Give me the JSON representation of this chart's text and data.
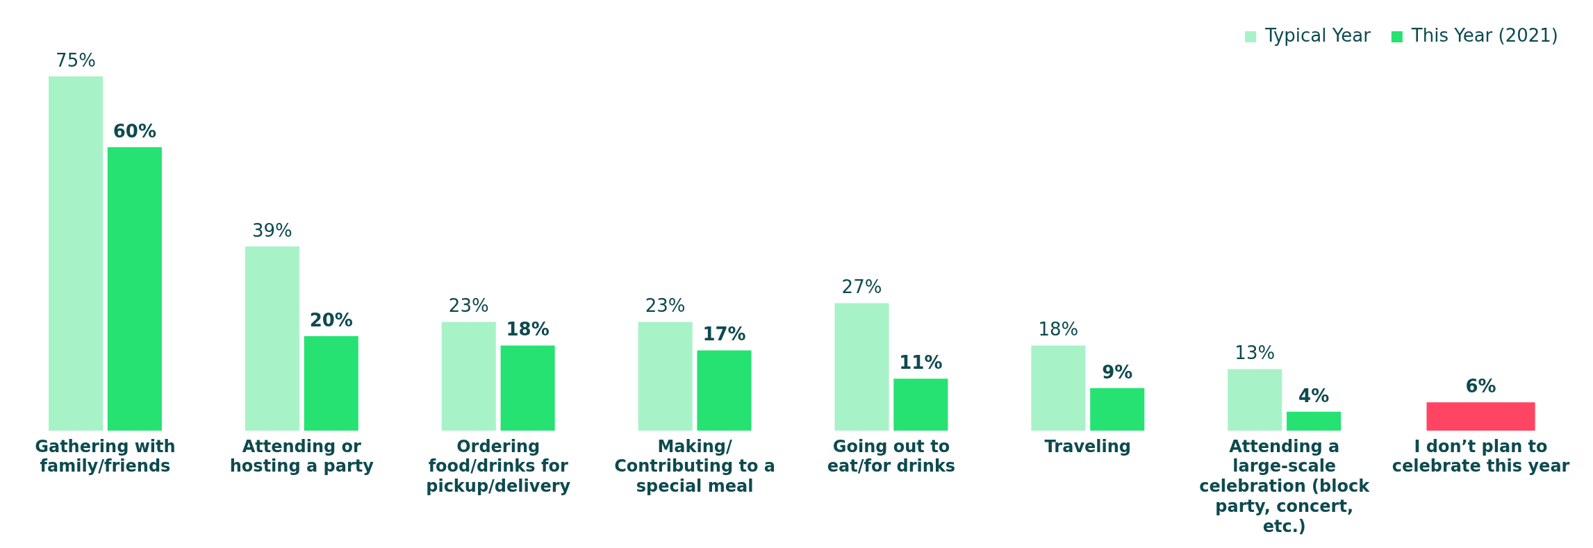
{
  "chart_data": {
    "type": "bar",
    "categories": [
      "Gathering with family/friends",
      "Attending or hosting a party",
      "Ordering food/drinks for pickup/delivery",
      "Making/ Contributing to a special meal",
      "Going out to eat/for drinks",
      "Traveling",
      "Attending a large-scale celebration (block party, concert, etc.)",
      "I don’t plan to celebrate this year"
    ],
    "series": [
      {
        "name": "Typical Year",
        "color": "#a8f2c8",
        "values": [
          75,
          39,
          23,
          23,
          27,
          18,
          13,
          null
        ],
        "value_labels": [
          "75%",
          "39%",
          "23%",
          "23%",
          "27%",
          "18%",
          "13%",
          null
        ]
      },
      {
        "name": "This Year (2021)",
        "color": "#25e272",
        "colors": [
          "#25e272",
          "#25e272",
          "#25e272",
          "#25e272",
          "#25e272",
          "#25e272",
          "#25e272",
          "#ff4563"
        ],
        "values": [
          60,
          20,
          18,
          17,
          11,
          9,
          4,
          6
        ],
        "value_labels": [
          "60%",
          "20%",
          "18%",
          "17%",
          "11%",
          "9%",
          "4%",
          "6%"
        ]
      }
    ],
    "legend": "top right",
    "grid": false
  }
}
